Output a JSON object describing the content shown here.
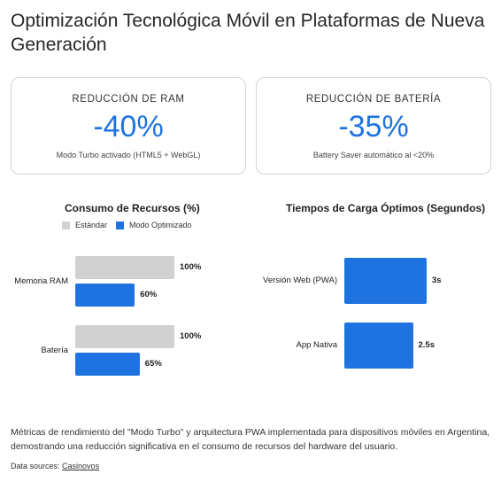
{
  "title": "Optimización Tecnológica Móvil en Plataformas de Nueva Generación",
  "cards": [
    {
      "label": "REDUCCIÓN DE RAM",
      "value": "-40%",
      "note": "Modo Turbo activado (HTML5 + WebGL)"
    },
    {
      "label": "REDUCCIÓN DE BATERÍA",
      "value": "-35%",
      "note": "Battery Saver automático al <20%"
    }
  ],
  "colors": {
    "standard": "#d1d1d1",
    "optimized": "#1f73e0"
  },
  "chart_data": [
    {
      "type": "bar",
      "orientation": "horizontal",
      "title": "Consumo de Recursos (%)",
      "categories": [
        "Memoria RAM",
        "Batería"
      ],
      "series": [
        {
          "name": "Estándar",
          "values": [
            100,
            100
          ],
          "labels": [
            "100%",
            "100%"
          ]
        },
        {
          "name": "Modo Optimizado",
          "values": [
            60,
            65
          ],
          "labels": [
            "60%",
            "65%"
          ]
        }
      ],
      "xlim": [
        0,
        100
      ],
      "legend": "top-center",
      "grid": false
    },
    {
      "type": "bar",
      "orientation": "horizontal",
      "title": "Tiempos de Carga Óptimos (Segundos)",
      "categories": [
        "Versión Web (PWA)",
        "App Nativa"
      ],
      "series": [
        {
          "values": [
            3,
            2.5
          ],
          "labels": [
            "3s",
            "2.5s"
          ]
        }
      ],
      "xlim": [
        0,
        3
      ],
      "grid": false
    }
  ],
  "footer": "Métricas de rendimiento del \"Modo Turbo\" y arquitectura PWA implementada para dispositivos móviles en Argentina, demostrando una reducción significativa en el consumo de recursos del hardware del usuario.",
  "sources": {
    "label": "Data sources:",
    "link": "Casinovos"
  }
}
